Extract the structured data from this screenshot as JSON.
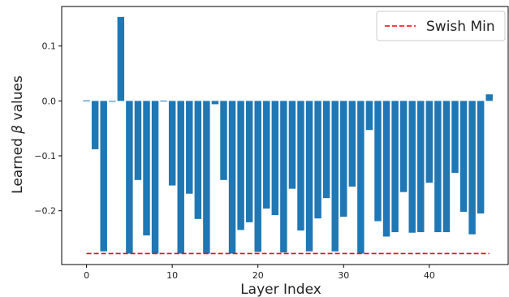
{
  "chart_data": {
    "type": "bar",
    "xlabel": "Layer Index",
    "ylabel_text": "Learned ",
    "ylabel_symbol": "β",
    "ylabel_suffix": " values",
    "xlim": [
      -2.9,
      49.3
    ],
    "ylim": [
      -0.298,
      0.172
    ],
    "x_ticks": [
      0,
      10,
      20,
      30,
      40
    ],
    "x_tick_labels": [
      "0",
      "10",
      "20",
      "30",
      "40"
    ],
    "y_ticks": [
      -0.2,
      -0.1,
      0.0,
      0.1
    ],
    "y_tick_labels": [
      "−0.2",
      "−0.1",
      "0.0",
      "0.1"
    ],
    "grid": false,
    "legend_position": "top-right",
    "bar_color": "#1f77b4",
    "reference_line": {
      "name": "Swish Min",
      "value": -0.278,
      "x_range": [
        0,
        47
      ],
      "color": "#ff0000",
      "style": "dashed"
    },
    "categories": [
      0,
      1,
      2,
      3,
      4,
      5,
      6,
      7,
      8,
      9,
      10,
      11,
      12,
      13,
      14,
      15,
      16,
      17,
      18,
      19,
      20,
      21,
      22,
      23,
      24,
      25,
      26,
      27,
      28,
      29,
      30,
      31,
      32,
      33,
      34,
      35,
      36,
      37,
      38,
      39,
      40,
      41,
      42,
      43,
      44,
      45,
      46,
      47
    ],
    "values": [
      0.001,
      -0.088,
      -0.274,
      0.0,
      0.153,
      -0.278,
      -0.144,
      -0.245,
      -0.278,
      0.0005,
      -0.154,
      -0.278,
      -0.169,
      -0.215,
      -0.278,
      -0.006,
      -0.144,
      -0.278,
      -0.235,
      -0.221,
      -0.275,
      -0.196,
      -0.208,
      -0.276,
      -0.16,
      -0.236,
      -0.274,
      -0.214,
      -0.177,
      -0.274,
      -0.211,
      -0.156,
      -0.278,
      -0.053,
      -0.219,
      -0.247,
      -0.239,
      -0.166,
      -0.24,
      -0.239,
      -0.149,
      -0.239,
      -0.239,
      -0.131,
      -0.202,
      -0.243,
      -0.205,
      0.012
    ]
  }
}
